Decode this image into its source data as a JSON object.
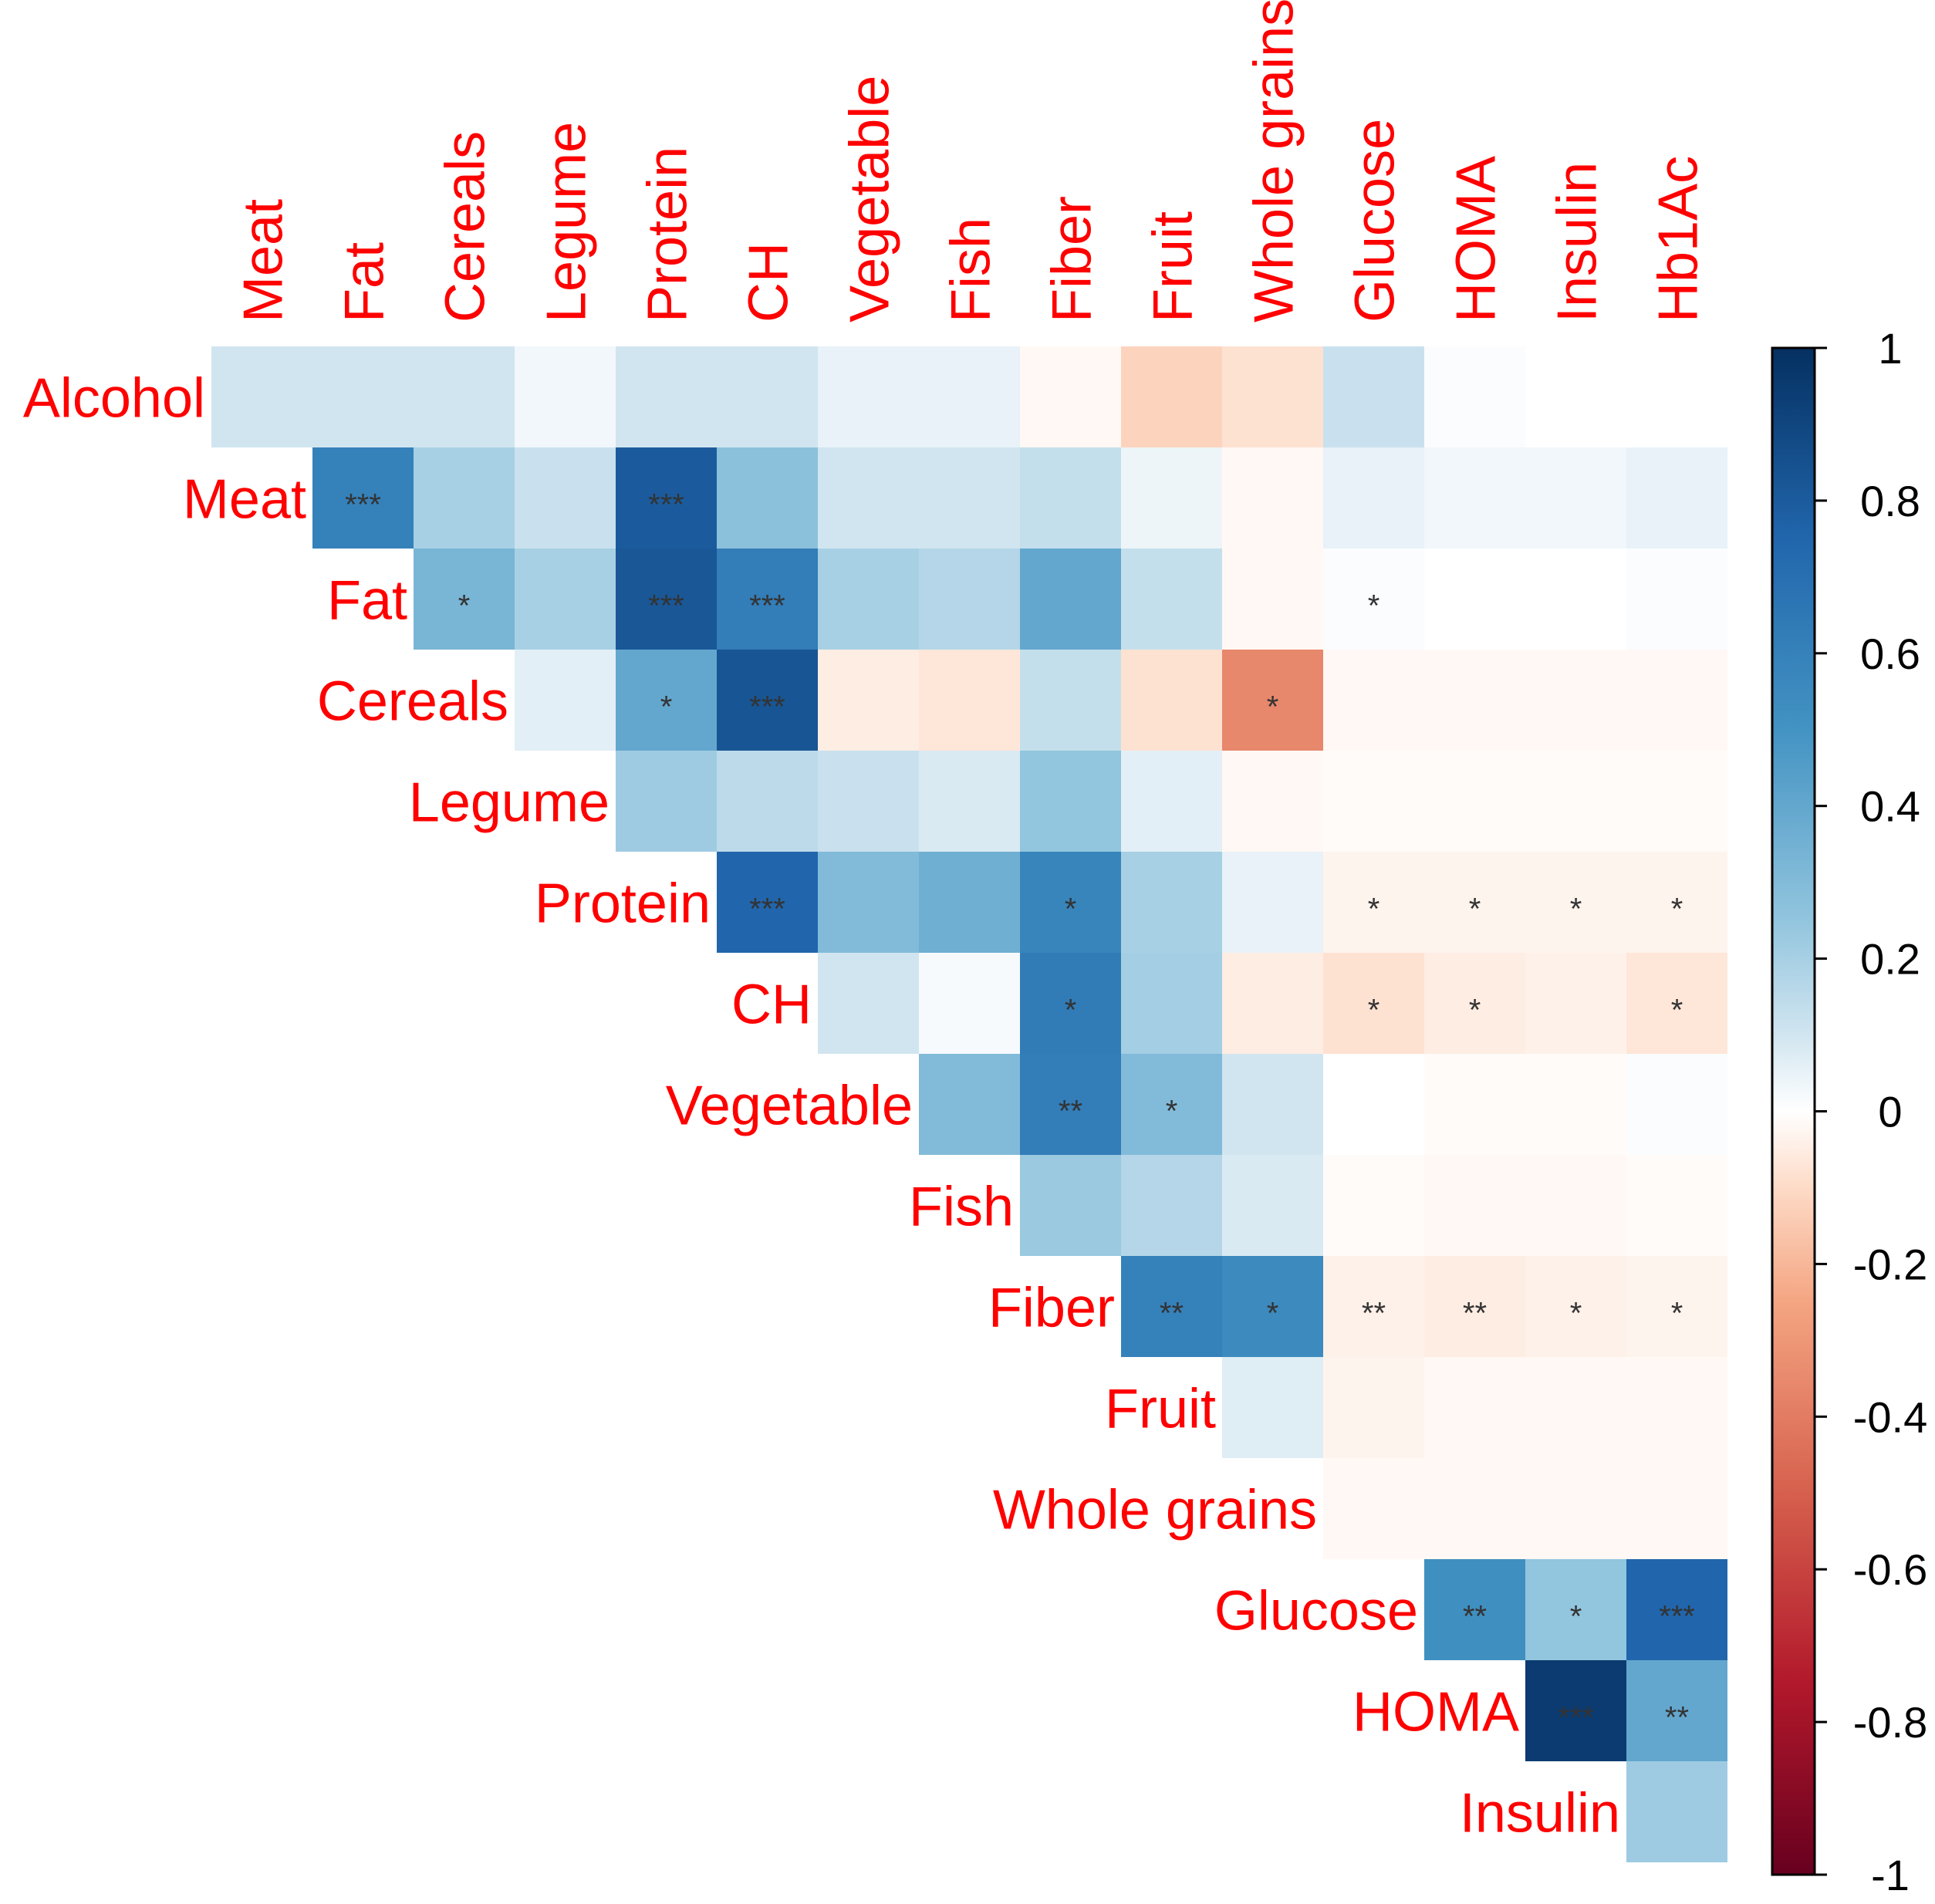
{
  "chart_data": {
    "type": "heatmap",
    "title": "",
    "subtitle": "",
    "variables": [
      "Alcohol",
      "Meat",
      "Fat",
      "Cereals",
      "Legume",
      "Protein",
      "CH",
      "Vegetable",
      "Fish",
      "Fiber",
      "Fruit",
      "Whole grains",
      "Glucose",
      "HOMA",
      "Insulin",
      "Hb1Ac"
    ],
    "row_labels": [
      "Alcohol",
      "Meat",
      "Fat",
      "Cereals",
      "Legume",
      "Protein",
      "CH",
      "Vegetable",
      "Fish",
      "Fiber",
      "Fruit",
      "Whole grains",
      "Glucose",
      "HOMA",
      "Insulin"
    ],
    "column_labels": [
      "Meat",
      "Fat",
      "Cereals",
      "Legume",
      "Protein",
      "CH",
      "Vegetable",
      "Fish",
      "Fiber",
      "Fruit",
      "Whole grains",
      "Glucose",
      "HOMA",
      "Insulin",
      "Hb1Ac"
    ],
    "matrix_shape": "upper-triangle",
    "correlations": [
      [
        0.1,
        0.1,
        0.1,
        0.03,
        0.1,
        0.1,
        0.05,
        0.05,
        -0.02,
        -0.12,
        -0.08,
        0.12,
        0.01,
        0.0,
        0.0
      ],
      [
        null,
        0.6,
        0.2,
        0.12,
        0.8,
        0.27,
        0.1,
        0.1,
        0.13,
        0.04,
        -0.02,
        0.05,
        0.03,
        0.03,
        0.05
      ],
      [
        null,
        null,
        0.33,
        0.2,
        0.82,
        0.62,
        0.2,
        0.17,
        0.4,
        0.13,
        -0.02,
        0.01,
        0.0,
        0.0,
        0.01
      ],
      [
        null,
        null,
        null,
        0.06,
        0.4,
        0.83,
        -0.05,
        -0.07,
        0.13,
        -0.08,
        -0.36,
        -0.02,
        -0.02,
        -0.02,
        -0.02
      ],
      [
        null,
        null,
        null,
        null,
        0.22,
        0.15,
        0.12,
        0.08,
        0.25,
        0.06,
        -0.02,
        -0.01,
        -0.01,
        -0.01,
        -0.01
      ],
      [
        null,
        null,
        null,
        null,
        null,
        0.75,
        0.3,
        0.36,
        0.58,
        0.2,
        0.05,
        -0.03,
        -0.03,
        -0.03,
        -0.03
      ],
      [
        null,
        null,
        null,
        null,
        null,
        null,
        0.1,
        0.02,
        0.63,
        0.21,
        -0.05,
        -0.08,
        -0.05,
        -0.04,
        -0.07
      ],
      [
        null,
        null,
        null,
        null,
        null,
        null,
        null,
        0.3,
        0.62,
        0.3,
        0.1,
        0.0,
        -0.01,
        -0.01,
        0.01
      ],
      [
        null,
        null,
        null,
        null,
        null,
        null,
        null,
        null,
        0.23,
        0.17,
        0.08,
        -0.01,
        -0.02,
        -0.02,
        -0.01
      ],
      [
        null,
        null,
        null,
        null,
        null,
        null,
        null,
        null,
        null,
        0.6,
        0.55,
        -0.04,
        -0.05,
        -0.04,
        -0.03
      ],
      [
        null,
        null,
        null,
        null,
        null,
        null,
        null,
        null,
        null,
        null,
        0.07,
        -0.03,
        -0.02,
        -0.02,
        -0.02
      ],
      [
        null,
        null,
        null,
        null,
        null,
        null,
        null,
        null,
        null,
        null,
        null,
        -0.02,
        -0.02,
        -0.02,
        -0.02
      ],
      [
        null,
        null,
        null,
        null,
        null,
        null,
        null,
        null,
        null,
        null,
        null,
        null,
        0.52,
        0.25,
        0.75
      ],
      [
        null,
        null,
        null,
        null,
        null,
        null,
        null,
        null,
        null,
        null,
        null,
        null,
        null,
        0.95,
        0.4
      ],
      [
        null,
        null,
        null,
        null,
        null,
        null,
        null,
        null,
        null,
        null,
        null,
        null,
        null,
        null,
        0.22
      ]
    ],
    "significance": [
      [
        "",
        "",
        "",
        "",
        "",
        "",
        "",
        "",
        "",
        "",
        "",
        "",
        "",
        "",
        ""
      ],
      [
        "",
        "***",
        "",
        "",
        "***",
        "",
        "",
        "",
        "",
        "",
        "",
        "",
        "",
        "",
        ""
      ],
      [
        "",
        "",
        "*",
        "",
        "***",
        "***",
        "",
        "",
        "",
        "",
        "",
        "*",
        "",
        "",
        ""
      ],
      [
        "",
        "",
        "",
        "",
        "*",
        "***",
        "",
        "",
        "",
        "",
        "*",
        "",
        "",
        "",
        ""
      ],
      [
        "",
        "",
        "",
        "",
        "",
        "",
        "",
        "",
        "",
        "",
        "",
        "",
        "",
        "",
        ""
      ],
      [
        "",
        "",
        "",
        "",
        "",
        "***",
        "",
        "",
        "*",
        "",
        "",
        "*",
        "*",
        "*",
        "*"
      ],
      [
        "",
        "",
        "",
        "",
        "",
        "",
        "",
        "",
        "*",
        "",
        "",
        "*",
        "*",
        "",
        "*"
      ],
      [
        "",
        "",
        "",
        "",
        "",
        "",
        "",
        "",
        "**",
        "*",
        "",
        "",
        "",
        "",
        ""
      ],
      [
        "",
        "",
        "",
        "",
        "",
        "",
        "",
        "",
        "",
        "",
        "",
        "",
        "",
        "",
        ""
      ],
      [
        "",
        "",
        "",
        "",
        "",
        "",
        "",
        "",
        "",
        "**",
        "*",
        "**",
        "**",
        "*",
        "*"
      ],
      [
        "",
        "",
        "",
        "",
        "",
        "",
        "",
        "",
        "",
        "",
        "",
        "",
        "",
        "",
        ""
      ],
      [
        "",
        "",
        "",
        "",
        "",
        "",
        "",
        "",
        "",
        "",
        "",
        "",
        "",
        "",
        ""
      ],
      [
        "",
        "",
        "",
        "",
        "",
        "",
        "",
        "",
        "",
        "",
        "",
        "",
        "**",
        "*",
        "***"
      ],
      [
        "",
        "",
        "",
        "",
        "",
        "",
        "",
        "",
        "",
        "",
        "",
        "",
        "",
        "***",
        "**"
      ],
      [
        "",
        "",
        "",
        "",
        "",
        "",
        "",
        "",
        "",
        "",
        "",
        "",
        "",
        "",
        ""
      ]
    ],
    "colorbar": {
      "range": [
        -1,
        1
      ],
      "ticks": [
        1,
        0.8,
        0.6,
        0.4,
        0.2,
        0,
        -0.2,
        -0.4,
        -0.6,
        -0.8,
        -1
      ],
      "tick_labels": [
        "1",
        "0.8",
        "0.6",
        "0.4",
        "0.2",
        "0",
        "-0.2",
        "-0.4",
        "-0.6",
        "-0.8",
        "-1"
      ],
      "stops": [
        {
          "v": -1,
          "color": "#67001f"
        },
        {
          "v": -0.75,
          "color": "#b2182b"
        },
        {
          "v": -0.5,
          "color": "#d6604d"
        },
        {
          "v": -0.25,
          "color": "#f4a582"
        },
        {
          "v": -0.1,
          "color": "#fddbc7"
        },
        {
          "v": 0,
          "color": "#ffffff"
        },
        {
          "v": 0.1,
          "color": "#d1e5f0"
        },
        {
          "v": 0.25,
          "color": "#92c5de"
        },
        {
          "v": 0.5,
          "color": "#4393c3"
        },
        {
          "v": 0.75,
          "color": "#2166ac"
        },
        {
          "v": 1,
          "color": "#053061"
        }
      ]
    },
    "label_color": "#ff0000",
    "marker_color": "#333333",
    "legend_placement": "right"
  }
}
